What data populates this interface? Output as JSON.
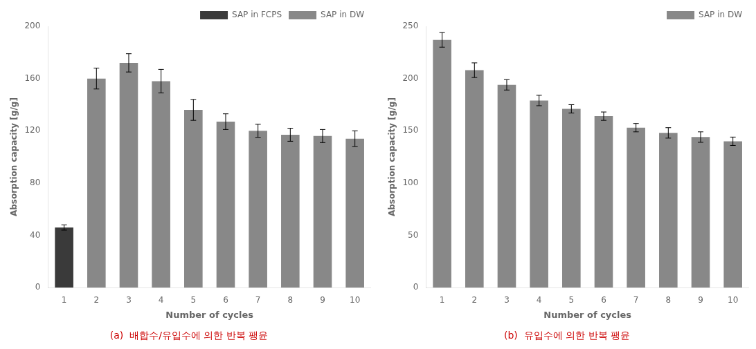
{
  "chart_data": [
    {
      "type": "bar",
      "categories": [
        1,
        2,
        3,
        4,
        5,
        6,
        7,
        8,
        9,
        10
      ],
      "series": [
        {
          "name": "SAP in FCPS",
          "color": "#3a3a3a",
          "values": [
            46,
            null,
            null,
            null,
            null,
            null,
            null,
            null,
            null,
            null
          ],
          "errors": [
            2,
            null,
            null,
            null,
            null,
            null,
            null,
            null,
            null,
            null
          ]
        },
        {
          "name": "SAP in DW",
          "color": "#888888",
          "values": [
            null,
            160,
            172,
            158,
            136,
            127,
            120,
            117,
            116,
            114
          ],
          "errors": [
            null,
            8,
            7,
            9,
            8,
            6,
            5,
            5,
            5,
            6
          ]
        }
      ],
      "xlabel": "Number of cycles",
      "ylabel": "Absorption capacity [g/g]",
      "ylim": [
        0,
        200
      ],
      "yticks": [
        0,
        40,
        80,
        120,
        160,
        200
      ],
      "grid": false,
      "legend": "upper right",
      "annotations": [
        {
          "text": "(a)  배합수/유입수에 의한 반복 팽윤",
          "color": "#cc0000"
        }
      ]
    },
    {
      "type": "bar",
      "categories": [
        1,
        2,
        3,
        4,
        5,
        6,
        7,
        8,
        9,
        10
      ],
      "series": [
        {
          "name": "SAP in DW",
          "color": "#888888",
          "values": [
            237,
            208,
            194,
            179,
            171,
            164,
            153,
            148,
            144,
            140
          ],
          "errors": [
            7,
            7,
            5,
            5,
            4,
            4,
            4,
            5,
            5,
            4
          ]
        }
      ],
      "xlabel": "Number of cycles",
      "ylabel": "Absorption capacity [g/g]",
      "ylim": [
        0,
        250
      ],
      "yticks": [
        0,
        50,
        100,
        150,
        200,
        250
      ],
      "grid": false,
      "legend": "upper right",
      "annotations": [
        {
          "text": "(b)  유입수에 의한 반복 팽윤",
          "color": "#cc0000"
        }
      ]
    }
  ]
}
